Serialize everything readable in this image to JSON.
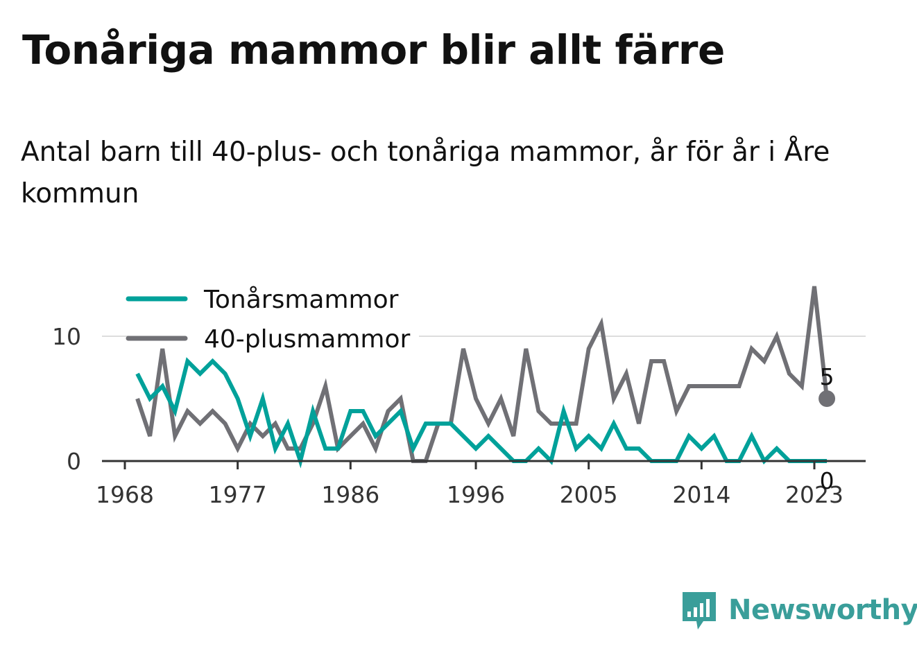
{
  "title": "Tonåriga mammor blir allt färre",
  "subtitle": "Antal barn till 40-plus- och tonåriga mammor, år för år i Åre kommun",
  "brand": {
    "name": "Newsworthy",
    "color": "#3a9e9a",
    "icon": "newsworthy-logo-icon"
  },
  "chart_data": {
    "type": "line",
    "title": "Tonåriga mammor blir allt färre",
    "subtitle": "Antal barn till 40-plus- och tonåriga mammor, år för år i Åre kommun",
    "x": [
      1969,
      1970,
      1971,
      1972,
      1973,
      1974,
      1975,
      1976,
      1977,
      1978,
      1979,
      1980,
      1981,
      1982,
      1983,
      1984,
      1985,
      1986,
      1987,
      1988,
      1989,
      1990,
      1991,
      1992,
      1993,
      1994,
      1995,
      1996,
      1997,
      1998,
      1999,
      2000,
      2001,
      2002,
      2003,
      2004,
      2005,
      2006,
      2007,
      2008,
      2009,
      2010,
      2011,
      2012,
      2013,
      2014,
      2015,
      2016,
      2017,
      2018,
      2019,
      2020,
      2021,
      2022,
      2023,
      2024
    ],
    "series": [
      {
        "name": "Tonårsmammor",
        "color": "#00a19a",
        "values": [
          7,
          5,
          6,
          4,
          8,
          7,
          8,
          7,
          5,
          2,
          5,
          1,
          3,
          0,
          4,
          1,
          1,
          4,
          4,
          2,
          3,
          4,
          1,
          3,
          3,
          3,
          2,
          1,
          2,
          1,
          0,
          0,
          1,
          0,
          4,
          1,
          2,
          1,
          3,
          1,
          1,
          0,
          0,
          0,
          2,
          1,
          2,
          0,
          0,
          2,
          0,
          1,
          0,
          0,
          0,
          0
        ]
      },
      {
        "name": "40-plusmammor",
        "color": "#707075",
        "values": [
          5,
          2,
          9,
          2,
          4,
          3,
          4,
          3,
          1,
          3,
          2,
          3,
          1,
          1,
          3,
          6,
          1,
          2,
          3,
          1,
          4,
          5,
          0,
          0,
          3,
          3,
          9,
          5,
          3,
          5,
          2,
          9,
          4,
          3,
          3,
          3,
          9,
          11,
          5,
          7,
          3,
          8,
          8,
          4,
          6,
          6,
          6,
          6,
          6,
          9,
          8,
          10,
          7,
          6,
          14,
          5
        ]
      }
    ],
    "end_labels": [
      "5",
      "0"
    ],
    "xticks": [
      "1968",
      "1977",
      "1986",
      "1996",
      "2005",
      "2014",
      "2023"
    ],
    "yticks": [
      "0",
      "10"
    ],
    "xlim": [
      1968,
      2027
    ],
    "ylim": [
      0,
      10
    ],
    "grid": true,
    "legend": "top-left"
  }
}
